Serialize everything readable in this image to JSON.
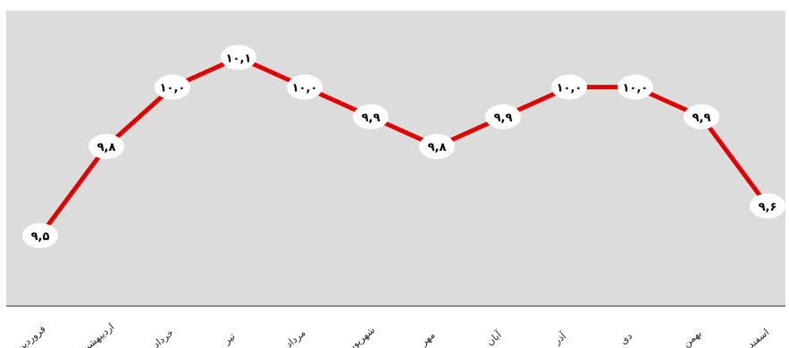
{
  "chart_data": {
    "type": "line",
    "categories": [
      "فروردین",
      "اردیبهشت",
      "خرداد",
      "تیر",
      "مرداد",
      "شهریور",
      "مهر",
      "آبان",
      "آذر",
      "دی",
      "بهمن",
      "اسفند"
    ],
    "series": [
      {
        "values": [
          9.5,
          9.8,
          10.0,
          10.1,
          10.0,
          9.9,
          9.8,
          9.9,
          10.0,
          10.0,
          9.9,
          9.6
        ],
        "labels": [
          "۹,۵",
          "۹,۸",
          "۱۰,۰",
          "۱۰,۱",
          "۱۰,۰",
          "۹,۹",
          "۹,۸",
          "۹,۹",
          "۱۰,۰",
          "۱۰,۰",
          "۹,۹",
          "۹,۶"
        ],
        "color": "#e00000"
      }
    ],
    "ylim": [
      9.2,
      10.2
    ],
    "grid": false,
    "legend": "none",
    "colors": {
      "background": "#dcdcdc",
      "line": "#e00000",
      "label_bg": "#ffffff"
    }
  }
}
